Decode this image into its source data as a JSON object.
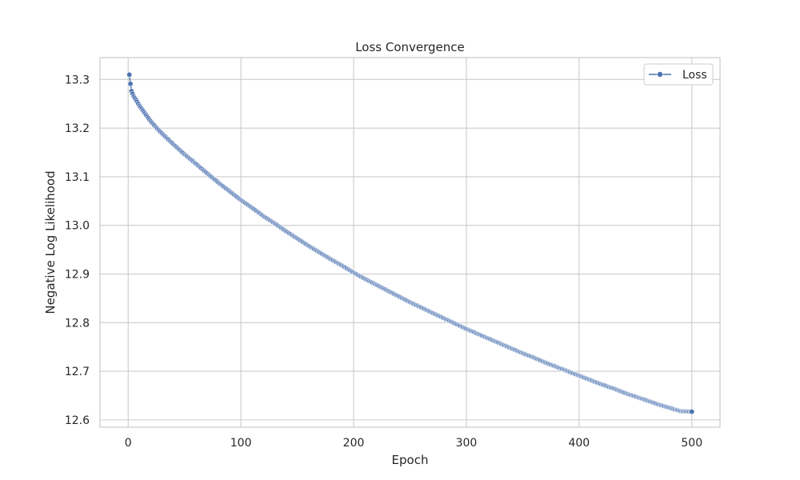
{
  "chart_data": {
    "type": "line",
    "title": "Loss Convergence",
    "xlabel": "Epoch",
    "ylabel": "Negative Log Likelihood",
    "xlim": [
      -25,
      525
    ],
    "ylim": [
      12.585,
      13.345
    ],
    "xticks": [
      0,
      100,
      200,
      300,
      400,
      500
    ],
    "yticks": [
      12.6,
      12.7,
      12.8,
      12.9,
      13.0,
      13.1,
      13.2,
      13.3
    ],
    "ytick_labels": [
      "12.6",
      "12.7",
      "12.8",
      "12.9",
      "13.0",
      "13.1",
      "13.2",
      "13.3"
    ],
    "grid": true,
    "legend_position": "top-right",
    "series": [
      {
        "name": "Loss",
        "color": "#4c72b0",
        "marker": "circle",
        "points": [
          [
            1,
            13.31
          ],
          [
            2,
            13.291
          ],
          [
            3,
            13.276
          ],
          [
            5,
            13.265
          ],
          [
            8,
            13.254
          ],
          [
            10,
            13.246
          ],
          [
            15,
            13.23
          ],
          [
            20,
            13.214
          ],
          [
            25,
            13.201
          ],
          [
            30,
            13.189
          ],
          [
            40,
            13.167
          ],
          [
            50,
            13.146
          ],
          [
            60,
            13.127
          ],
          [
            70,
            13.107
          ],
          [
            80,
            13.088
          ],
          [
            90,
            13.07
          ],
          [
            100,
            13.052
          ],
          [
            110,
            13.036
          ],
          [
            120,
            13.019
          ],
          [
            130,
            13.004
          ],
          [
            140,
            12.988
          ],
          [
            150,
            12.973
          ],
          [
            160,
            12.958
          ],
          [
            170,
            12.944
          ],
          [
            180,
            12.93
          ],
          [
            190,
            12.917
          ],
          [
            200,
            12.903
          ],
          [
            210,
            12.89
          ],
          [
            220,
            12.878
          ],
          [
            230,
            12.866
          ],
          [
            240,
            12.854
          ],
          [
            250,
            12.842
          ],
          [
            260,
            12.831
          ],
          [
            270,
            12.82
          ],
          [
            280,
            12.809
          ],
          [
            290,
            12.798
          ],
          [
            300,
            12.787
          ],
          [
            310,
            12.777
          ],
          [
            320,
            12.767
          ],
          [
            330,
            12.757
          ],
          [
            340,
            12.747
          ],
          [
            350,
            12.737
          ],
          [
            360,
            12.728
          ],
          [
            370,
            12.718
          ],
          [
            380,
            12.709
          ],
          [
            390,
            12.7
          ],
          [
            400,
            12.691
          ],
          [
            410,
            12.682
          ],
          [
            420,
            12.673
          ],
          [
            430,
            12.665
          ],
          [
            440,
            12.656
          ],
          [
            450,
            12.648
          ],
          [
            460,
            12.64
          ],
          [
            470,
            12.632
          ],
          [
            480,
            12.625
          ],
          [
            490,
            12.618
          ],
          [
            500,
            12.617
          ]
        ]
      }
    ]
  }
}
